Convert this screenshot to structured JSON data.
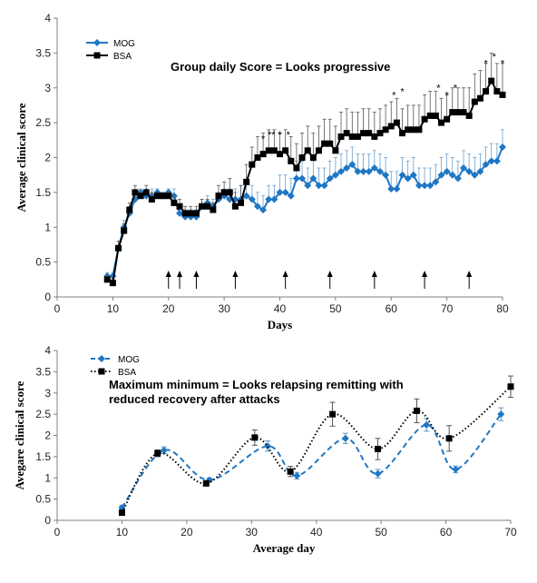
{
  "chart_data": [
    {
      "type": "line",
      "xlabel": "Days",
      "ylabel": "Average clinical score",
      "xlim": [
        0,
        80
      ],
      "ylim": [
        0,
        4
      ],
      "xticks": [
        "0",
        "10",
        "20",
        "30",
        "40",
        "50",
        "60",
        "70",
        "80"
      ],
      "yticks": [
        "0",
        "0.5",
        "1",
        "1.5",
        "2",
        "2.5",
        "3",
        "3.5",
        "4"
      ],
      "annotation": "Group daily Score = Looks progressive",
      "arrows_x": [
        20,
        22,
        25,
        32,
        41,
        49,
        57,
        66,
        74
      ],
      "stars": [
        {
          "x": 37,
          "y": 2.22,
          "text": "*"
        },
        {
          "x": 38.5,
          "y": 2.28,
          "text": "**"
        },
        {
          "x": 40,
          "y": 2.28,
          "text": "*"
        },
        {
          "x": 41.5,
          "y": 2.28,
          "text": "*"
        },
        {
          "x": 60.5,
          "y": 2.85,
          "text": "*"
        },
        {
          "x": 62,
          "y": 2.9,
          "text": "*"
        },
        {
          "x": 68.5,
          "y": 2.95,
          "text": "*"
        },
        {
          "x": 70,
          "y": 2.85,
          "text": "*"
        },
        {
          "x": 71.5,
          "y": 2.95,
          "text": "*"
        },
        {
          "x": 77,
          "y": 3.3,
          "text": "*"
        },
        {
          "x": 78.5,
          "y": 3.4,
          "text": "*"
        },
        {
          "x": 80,
          "y": 3.3,
          "text": "*"
        }
      ],
      "legend_position": "top-left",
      "series": [
        {
          "name": "MOG",
          "color": "#1f77c4",
          "marker": "diamond",
          "x": [
            9,
            10,
            11,
            12,
            13,
            14,
            15,
            16,
            17,
            18,
            19,
            20,
            21,
            22,
            23,
            24,
            25,
            26,
            27,
            28,
            29,
            30,
            31,
            32,
            33,
            34,
            35,
            36,
            37,
            38,
            39,
            40,
            41,
            42,
            43,
            44,
            45,
            46,
            47,
            48,
            49,
            50,
            51,
            52,
            53,
            54,
            55,
            56,
            57,
            58,
            59,
            60,
            61,
            62,
            63,
            64,
            65,
            66,
            67,
            68,
            69,
            70,
            71,
            72,
            73,
            74,
            75,
            76,
            77,
            78,
            79,
            80
          ],
          "y": [
            0.3,
            0.3,
            0.7,
            1.0,
            1.2,
            1.4,
            1.5,
            1.45,
            1.45,
            1.5,
            1.45,
            1.5,
            1.45,
            1.2,
            1.15,
            1.15,
            1.15,
            1.3,
            1.35,
            1.3,
            1.4,
            1.45,
            1.4,
            1.4,
            1.4,
            1.45,
            1.4,
            1.3,
            1.25,
            1.4,
            1.4,
            1.5,
            1.5,
            1.45,
            1.7,
            1.7,
            1.6,
            1.7,
            1.6,
            1.6,
            1.7,
            1.75,
            1.8,
            1.85,
            1.9,
            1.8,
            1.8,
            1.8,
            1.85,
            1.8,
            1.75,
            1.55,
            1.55,
            1.75,
            1.7,
            1.75,
            1.6,
            1.6,
            1.6,
            1.65,
            1.75,
            1.8,
            1.75,
            1.7,
            1.85,
            1.8,
            1.75,
            1.8,
            1.9,
            1.95,
            1.95,
            2.15
          ],
          "err": [
            0.05,
            0.05,
            0.1,
            0.1,
            0.1,
            0.1,
            0.05,
            0.1,
            0.1,
            0.05,
            0.05,
            0.05,
            0.1,
            0.1,
            0.1,
            0.1,
            0.1,
            0.1,
            0.1,
            0.1,
            0.1,
            0.1,
            0.15,
            0.15,
            0.2,
            0.2,
            0.2,
            0.2,
            0.2,
            0.2,
            0.2,
            0.25,
            0.25,
            0.25,
            0.25,
            0.25,
            0.25,
            0.25,
            0.25,
            0.25,
            0.25,
            0.25,
            0.25,
            0.25,
            0.25,
            0.25,
            0.25,
            0.25,
            0.25,
            0.25,
            0.25,
            0.25,
            0.25,
            0.25,
            0.25,
            0.25,
            0.25,
            0.25,
            0.25,
            0.25,
            0.25,
            0.25,
            0.25,
            0.25,
            0.25,
            0.25,
            0.25,
            0.25,
            0.25,
            0.25,
            0.25,
            0.25
          ]
        },
        {
          "name": "BSA",
          "color": "#000000",
          "marker": "square",
          "x": [
            9,
            10,
            11,
            12,
            13,
            14,
            15,
            16,
            17,
            18,
            19,
            20,
            21,
            22,
            23,
            24,
            25,
            26,
            27,
            28,
            29,
            30,
            31,
            32,
            33,
            34,
            35,
            36,
            37,
            38,
            39,
            40,
            41,
            42,
            43,
            44,
            45,
            46,
            47,
            48,
            49,
            50,
            51,
            52,
            53,
            54,
            55,
            56,
            57,
            58,
            59,
            60,
            61,
            62,
            63,
            64,
            65,
            66,
            67,
            68,
            69,
            70,
            71,
            72,
            73,
            74,
            75,
            76,
            77,
            78,
            79,
            80
          ],
          "y": [
            0.25,
            0.2,
            0.7,
            0.95,
            1.25,
            1.5,
            1.45,
            1.5,
            1.4,
            1.45,
            1.45,
            1.45,
            1.35,
            1.3,
            1.2,
            1.2,
            1.2,
            1.3,
            1.3,
            1.25,
            1.45,
            1.5,
            1.5,
            1.3,
            1.35,
            1.65,
            1.9,
            2.0,
            2.05,
            2.1,
            2.1,
            2.05,
            2.1,
            1.95,
            1.85,
            2.0,
            2.1,
            2.0,
            2.1,
            2.2,
            2.2,
            2.1,
            2.3,
            2.35,
            2.3,
            2.3,
            2.35,
            2.35,
            2.3,
            2.35,
            2.4,
            2.45,
            2.5,
            2.35,
            2.4,
            2.4,
            2.4,
            2.55,
            2.6,
            2.6,
            2.5,
            2.55,
            2.65,
            2.65,
            2.65,
            2.6,
            2.8,
            2.85,
            2.95,
            3.1,
            2.95,
            2.9
          ],
          "err": [
            0.05,
            0.05,
            0.1,
            0.1,
            0.1,
            0.1,
            0.05,
            0.1,
            0.1,
            0.05,
            0.05,
            0.05,
            0.1,
            0.1,
            0.1,
            0.1,
            0.1,
            0.1,
            0.1,
            0.1,
            0.15,
            0.15,
            0.2,
            0.2,
            0.25,
            0.25,
            0.25,
            0.3,
            0.3,
            0.3,
            0.3,
            0.3,
            0.3,
            0.35,
            0.35,
            0.35,
            0.35,
            0.35,
            0.35,
            0.35,
            0.35,
            0.35,
            0.35,
            0.35,
            0.35,
            0.35,
            0.35,
            0.35,
            0.35,
            0.35,
            0.35,
            0.35,
            0.35,
            0.35,
            0.35,
            0.35,
            0.35,
            0.35,
            0.35,
            0.35,
            0.35,
            0.35,
            0.35,
            0.35,
            0.35,
            0.4,
            0.4,
            0.4,
            0.4,
            0.4,
            0.4,
            0.45
          ]
        }
      ]
    },
    {
      "type": "line",
      "xlabel": "Average day",
      "ylabel": "Avegare clinical score",
      "xlim": [
        0,
        70
      ],
      "ylim": [
        0,
        4
      ],
      "xticks": [
        "0",
        "10",
        "20",
        "30",
        "40",
        "50",
        "60",
        "70"
      ],
      "yticks": [
        "0",
        "0.5",
        "1",
        "1.5",
        "2",
        "2.5",
        "3",
        "3.5",
        "4"
      ],
      "annotation_lines": [
        "Maximum minimum = Looks relapsing remitting with",
        "reduced recovery after attacks"
      ],
      "legend_position": "top-left",
      "series": [
        {
          "name": "MOG",
          "color": "#1f77c4",
          "marker": "diamond",
          "style": "dashed",
          "x": [
            10,
            16.5,
            23.5,
            32.5,
            37,
            44.5,
            49.5,
            57,
            61.5,
            68.5
          ],
          "y": [
            0.3,
            1.65,
            0.95,
            1.75,
            1.05,
            1.93,
            1.1,
            2.25,
            1.2,
            2.5
          ],
          "err": [
            0.05,
            0.08,
            0.05,
            0.12,
            0.08,
            0.12,
            0.1,
            0.15,
            0.08,
            0.15
          ]
        },
        {
          "name": "BSA",
          "color": "#000000",
          "marker": "square",
          "style": "dotted",
          "x": [
            10,
            15.5,
            23,
            30.5,
            36,
            42.5,
            49.5,
            55.5,
            60.5,
            70
          ],
          "y": [
            0.18,
            1.58,
            0.87,
            1.95,
            1.15,
            2.5,
            1.68,
            2.58,
            1.93,
            3.15
          ],
          "err": [
            0.05,
            0.08,
            0.05,
            0.18,
            0.12,
            0.28,
            0.25,
            0.28,
            0.3,
            0.25
          ]
        }
      ]
    }
  ]
}
